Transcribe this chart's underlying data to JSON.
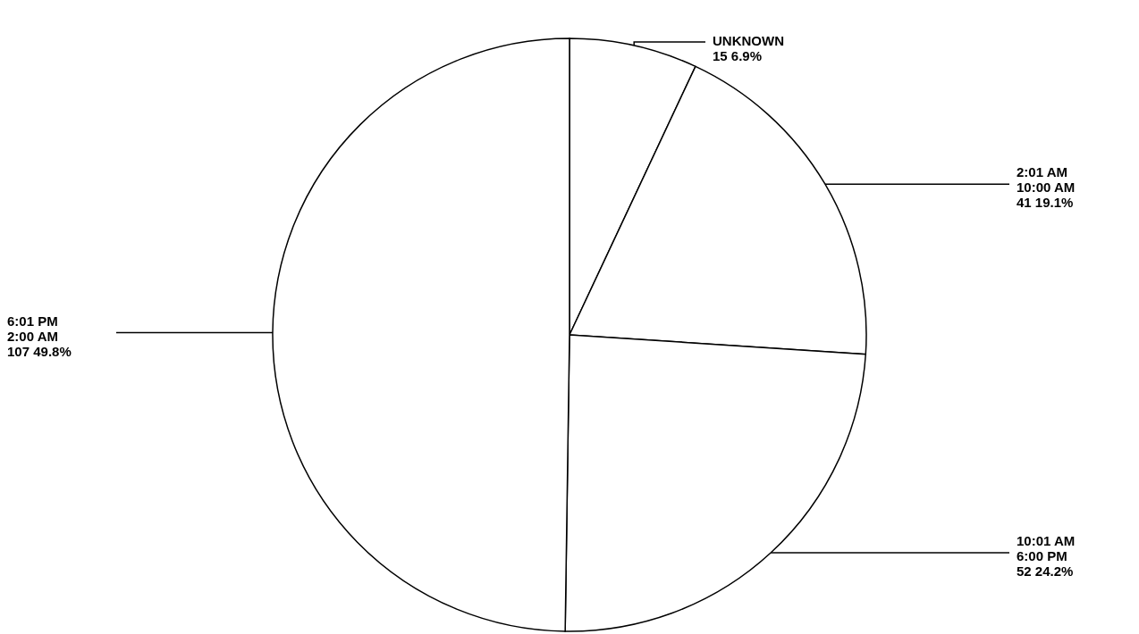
{
  "chart_data": {
    "type": "pie",
    "categories": [
      "UNKNOWN",
      "2:01 AM\n10:00 AM",
      "10:01 AM\n6:00 PM",
      "6:01 PM\n2:00 AM"
    ],
    "values": [
      15,
      41,
      52,
      107
    ],
    "value_labels": [
      "15 6.9%",
      "41 19.1%",
      "52 24.2%",
      "107 49.8%"
    ],
    "colors": [
      "#ffffff",
      "#ffffff",
      "#ffffff",
      "#ffffff"
    ]
  }
}
